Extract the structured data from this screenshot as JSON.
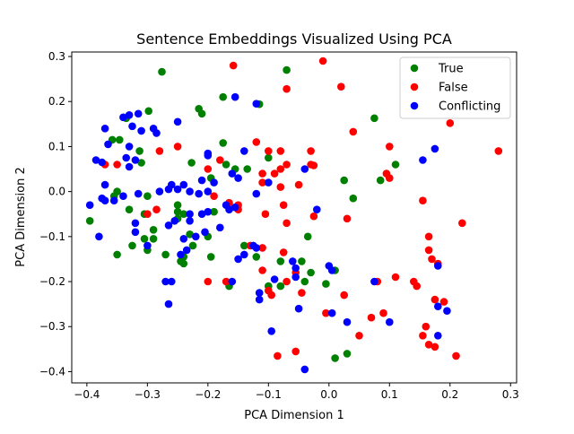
{
  "chart_data": {
    "type": "scatter",
    "title": "Sentence Embeddings Visualized Using PCA",
    "xlabel": "PCA Dimension 1",
    "ylabel": "PCA Dimension 2",
    "xlim": [
      -0.425,
      0.31
    ],
    "ylim": [
      -0.425,
      0.31
    ],
    "xticks": [
      -0.4,
      -0.3,
      -0.2,
      -0.1,
      0.0,
      0.1,
      0.2,
      0.3
    ],
    "yticks": [
      -0.4,
      -0.3,
      -0.2,
      -0.1,
      0.0,
      0.1,
      0.2,
      0.3
    ],
    "xtick_labels": [
      "−0.4",
      "−0.3",
      "−0.2",
      "−0.1",
      "0.0",
      "0.1",
      "0.2",
      "0.3"
    ],
    "ytick_labels": [
      "−0.4",
      "−0.3",
      "−0.2",
      "−0.1",
      "0.0",
      "0.1",
      "0.2",
      "0.3"
    ],
    "grid": false,
    "legend_position": "top-right",
    "series": [
      {
        "name": "True",
        "color": "#008000",
        "points": [
          [
            -0.276,
            0.266
          ],
          [
            -0.298,
            0.179
          ],
          [
            -0.215,
            0.184
          ],
          [
            -0.21,
            0.173
          ],
          [
            -0.175,
            0.21
          ],
          [
            -0.115,
            0.194
          ],
          [
            -0.07,
            0.27
          ],
          [
            -0.335,
            0.163
          ],
          [
            -0.358,
            0.115
          ],
          [
            -0.346,
            0.115
          ],
          [
            -0.313,
            0.09
          ],
          [
            -0.31,
            0.064
          ],
          [
            -0.227,
            0.064
          ],
          [
            -0.175,
            0.108
          ],
          [
            -0.17,
            0.06
          ],
          [
            -0.155,
            0.05
          ],
          [
            -0.195,
            0.03
          ],
          [
            -0.35,
            0.0
          ],
          [
            -0.3,
            -0.01
          ],
          [
            -0.355,
            -0.01
          ],
          [
            -0.33,
            -0.04
          ],
          [
            -0.305,
            -0.05
          ],
          [
            -0.25,
            -0.03
          ],
          [
            -0.25,
            -0.045
          ],
          [
            -0.25,
            -0.06
          ],
          [
            -0.24,
            -0.05
          ],
          [
            -0.19,
            -0.045
          ],
          [
            -0.27,
            -0.14
          ],
          [
            -0.29,
            -0.085
          ],
          [
            -0.29,
            -0.105
          ],
          [
            -0.305,
            -0.105
          ],
          [
            -0.3,
            -0.13
          ],
          [
            -0.325,
            -0.12
          ],
          [
            -0.35,
            -0.14
          ],
          [
            -0.395,
            -0.065
          ],
          [
            -0.23,
            -0.095
          ],
          [
            -0.225,
            -0.12
          ],
          [
            -0.24,
            -0.145
          ],
          [
            -0.245,
            -0.155
          ],
          [
            -0.2,
            -0.1
          ],
          [
            -0.195,
            -0.145
          ],
          [
            -0.165,
            -0.21
          ],
          [
            -0.14,
            -0.12
          ],
          [
            -0.12,
            -0.145
          ],
          [
            -0.1,
            0.075
          ],
          [
            -0.1,
            -0.21
          ],
          [
            -0.08,
            -0.155
          ],
          [
            -0.045,
            -0.155
          ],
          [
            -0.035,
            -0.1
          ],
          [
            -0.03,
            -0.18
          ],
          [
            -0.04,
            -0.2
          ],
          [
            -0.005,
            -0.205
          ],
          [
            0.01,
            -0.175
          ],
          [
            0.01,
            -0.37
          ],
          [
            0.03,
            -0.36
          ],
          [
            0.025,
            0.025
          ],
          [
            0.04,
            -0.015
          ],
          [
            0.075,
            0.163
          ],
          [
            0.085,
            0.025
          ],
          [
            0.11,
            0.06
          ],
          [
            -0.08,
            -0.21
          ],
          [
            -0.135,
            0.05
          ],
          [
            -0.24,
            -0.16
          ]
        ]
      },
      {
        "name": "False",
        "color": "#ff0000",
        "points": [
          [
            -0.158,
            0.28
          ],
          [
            -0.07,
            0.228
          ],
          [
            -0.01,
            0.29
          ],
          [
            0.02,
            0.233
          ],
          [
            0.04,
            0.133
          ],
          [
            0.2,
            0.152
          ],
          [
            0.1,
            0.1
          ],
          [
            0.28,
            0.09
          ],
          [
            -0.1,
            0.09
          ],
          [
            -0.08,
            0.09
          ],
          [
            -0.12,
            0.11
          ],
          [
            -0.03,
            0.09
          ],
          [
            -0.28,
            0.09
          ],
          [
            -0.25,
            0.1
          ],
          [
            -0.37,
            0.06
          ],
          [
            -0.35,
            0.06
          ],
          [
            -0.2,
            0.05
          ],
          [
            -0.18,
            0.07
          ],
          [
            -0.03,
            0.06
          ],
          [
            -0.025,
            0.058
          ],
          [
            -0.07,
            0.06
          ],
          [
            -0.08,
            0.05
          ],
          [
            -0.09,
            0.04
          ],
          [
            -0.11,
            0.04
          ],
          [
            -0.11,
            0.02
          ],
          [
            -0.08,
            0.01
          ],
          [
            -0.05,
            0.015
          ],
          [
            0.095,
            0.04
          ],
          [
            0.1,
            0.03
          ],
          [
            0.155,
            -0.02
          ],
          [
            -0.19,
            -0.01
          ],
          [
            -0.3,
            -0.05
          ],
          [
            -0.285,
            -0.04
          ],
          [
            -0.15,
            -0.03
          ],
          [
            -0.15,
            -0.04
          ],
          [
            -0.105,
            -0.05
          ],
          [
            -0.075,
            -0.03
          ],
          [
            -0.07,
            -0.07
          ],
          [
            -0.025,
            -0.055
          ],
          [
            0.03,
            -0.06
          ],
          [
            0.22,
            -0.07
          ],
          [
            0.165,
            -0.1
          ],
          [
            0.165,
            -0.13
          ],
          [
            0.17,
            -0.15
          ],
          [
            0.18,
            -0.16
          ],
          [
            -0.2,
            -0.2
          ],
          [
            -0.17,
            -0.2
          ],
          [
            -0.13,
            -0.12
          ],
          [
            -0.11,
            -0.125
          ],
          [
            -0.11,
            -0.175
          ],
          [
            -0.1,
            -0.22
          ],
          [
            -0.095,
            -0.23
          ],
          [
            -0.075,
            -0.135
          ],
          [
            -0.07,
            -0.2
          ],
          [
            -0.055,
            -0.18
          ],
          [
            -0.045,
            -0.225
          ],
          [
            -0.005,
            -0.27
          ],
          [
            0.025,
            -0.23
          ],
          [
            0.05,
            -0.32
          ],
          [
            0.07,
            -0.28
          ],
          [
            0.08,
            -0.2
          ],
          [
            0.09,
            -0.27
          ],
          [
            0.11,
            -0.19
          ],
          [
            0.14,
            -0.2
          ],
          [
            0.145,
            -0.21
          ],
          [
            0.155,
            -0.32
          ],
          [
            0.16,
            -0.3
          ],
          [
            0.165,
            -0.34
          ],
          [
            0.175,
            -0.345
          ],
          [
            0.175,
            -0.24
          ],
          [
            0.19,
            -0.245
          ],
          [
            0.21,
            -0.365
          ],
          [
            -0.085,
            -0.365
          ],
          [
            -0.055,
            -0.355
          ],
          [
            -0.165,
            -0.025
          ]
        ]
      },
      {
        "name": "Conflicting",
        "color": "#0000ff",
        "points": [
          [
            -0.155,
            0.21
          ],
          [
            -0.12,
            0.195
          ],
          [
            -0.33,
            0.17
          ],
          [
            -0.34,
            0.165
          ],
          [
            -0.315,
            0.173
          ],
          [
            -0.325,
            0.145
          ],
          [
            -0.31,
            0.135
          ],
          [
            -0.29,
            0.14
          ],
          [
            -0.285,
            0.13
          ],
          [
            -0.25,
            0.155
          ],
          [
            -0.37,
            0.14
          ],
          [
            -0.365,
            0.105
          ],
          [
            -0.33,
            0.1
          ],
          [
            -0.2,
            0.085
          ],
          [
            -0.2,
            0.08
          ],
          [
            -0.14,
            0.09
          ],
          [
            -0.385,
            0.07
          ],
          [
            -0.375,
            0.065
          ],
          [
            -0.335,
            0.075
          ],
          [
            -0.32,
            0.07
          ],
          [
            -0.33,
            0.055
          ],
          [
            -0.16,
            0.04
          ],
          [
            -0.15,
            0.03
          ],
          [
            -0.19,
            0.02
          ],
          [
            -0.21,
            0.025
          ],
          [
            -0.24,
            0.015
          ],
          [
            -0.26,
            0.015
          ],
          [
            -0.265,
            0.005
          ],
          [
            -0.25,
            0.005
          ],
          [
            -0.23,
            0.0
          ],
          [
            -0.215,
            -0.005
          ],
          [
            -0.2,
            0.0
          ],
          [
            -0.28,
            0.0
          ],
          [
            -0.37,
            0.015
          ],
          [
            -0.375,
            -0.015
          ],
          [
            -0.37,
            -0.02
          ],
          [
            -0.34,
            -0.01
          ],
          [
            -0.355,
            -0.02
          ],
          [
            -0.315,
            -0.005
          ],
          [
            -0.395,
            -0.03
          ],
          [
            -0.38,
            -0.1
          ],
          [
            -0.32,
            -0.07
          ],
          [
            -0.23,
            -0.05
          ],
          [
            -0.21,
            -0.05
          ],
          [
            -0.2,
            -0.045
          ],
          [
            -0.17,
            -0.03
          ],
          [
            -0.165,
            -0.04
          ],
          [
            -0.155,
            -0.035
          ],
          [
            -0.12,
            -0.005
          ],
          [
            -0.265,
            -0.075
          ],
          [
            -0.255,
            -0.065
          ],
          [
            -0.23,
            -0.065
          ],
          [
            -0.22,
            -0.1
          ],
          [
            -0.205,
            -0.09
          ],
          [
            -0.18,
            -0.08
          ],
          [
            -0.3,
            -0.12
          ],
          [
            -0.32,
            -0.09
          ],
          [
            -0.24,
            -0.105
          ],
          [
            -0.235,
            -0.13
          ],
          [
            -0.245,
            -0.14
          ],
          [
            -0.27,
            -0.2
          ],
          [
            -0.26,
            -0.2
          ],
          [
            -0.265,
            -0.25
          ],
          [
            -0.15,
            -0.15
          ],
          [
            -0.14,
            -0.14
          ],
          [
            -0.125,
            -0.12
          ],
          [
            -0.12,
            -0.125
          ],
          [
            -0.115,
            -0.225
          ],
          [
            -0.115,
            -0.24
          ],
          [
            -0.09,
            -0.195
          ],
          [
            -0.095,
            -0.31
          ],
          [
            -0.06,
            -0.155
          ],
          [
            -0.055,
            -0.17
          ],
          [
            -0.055,
            -0.19
          ],
          [
            -0.05,
            -0.26
          ],
          [
            -0.04,
            -0.395
          ],
          [
            -0.04,
            0.05
          ],
          [
            -0.02,
            -0.04
          ],
          [
            0.0,
            -0.165
          ],
          [
            0.005,
            -0.175
          ],
          [
            0.005,
            -0.27
          ],
          [
            0.03,
            -0.29
          ],
          [
            0.075,
            -0.2
          ],
          [
            0.1,
            -0.29
          ],
          [
            0.155,
            0.07
          ],
          [
            0.175,
            0.095
          ],
          [
            0.18,
            -0.165
          ],
          [
            0.18,
            -0.255
          ],
          [
            0.18,
            -0.32
          ],
          [
            0.195,
            -0.265
          ],
          [
            -0.16,
            -0.2
          ],
          [
            -0.1,
            0.02
          ]
        ]
      }
    ]
  }
}
